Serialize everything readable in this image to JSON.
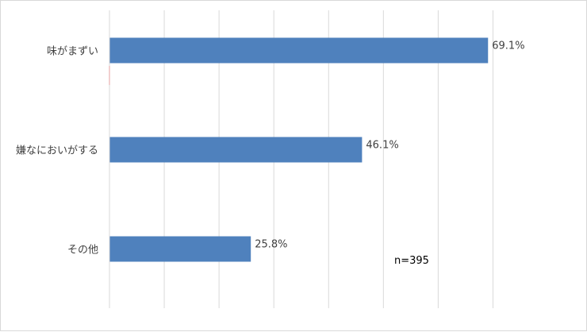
{
  "chart_data": {
    "type": "bar",
    "orientation": "horizontal",
    "categories": [
      "味がまずい",
      "嫌なにおいがする",
      "その他"
    ],
    "values": [
      69.1,
      46.1,
      25.8
    ],
    "value_labels": [
      "69.1%",
      "46.1%",
      "25.8%"
    ],
    "xlim": [
      0,
      75
    ],
    "grid": true,
    "bar_color": "#4F81BD",
    "annotation": "n=395"
  }
}
